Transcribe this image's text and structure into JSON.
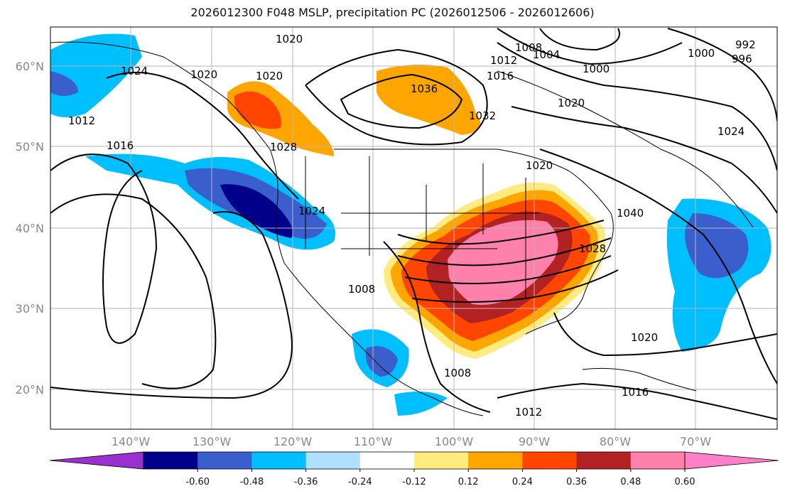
{
  "title": "2026012300 F048 MSLP, precipitation PC (2026012506 - 2026012606)",
  "lat_labels": [
    "60°N",
    "50°N",
    "40°N",
    "30°N",
    "20°N"
  ],
  "lon_labels": [
    "140°W",
    "130°W",
    "120°W",
    "110°W",
    "100°W",
    "90°W",
    "80°W",
    "70°W"
  ],
  "colorbar": {
    "colors": [
      "#9b30d0",
      "#00008b",
      "#3a5fcd",
      "#00bfff",
      "#b0e0ff",
      "#ffffff",
      "#ffeb80",
      "#ffa500",
      "#ff4500",
      "#b22222",
      "#ff80ab",
      "#ff80c8"
    ],
    "labels": [
      "-0.60",
      "-0.48",
      "-0.36",
      "-0.24",
      "-0.12",
      "0.12",
      "0.24",
      "0.36",
      "0.48",
      "0.60"
    ]
  },
  "isobar_labels": [
    "1020",
    "1024",
    "1020",
    "1020",
    "1036",
    "1032",
    "1008",
    "1012",
    "1016",
    "1004",
    "1000",
    "1000",
    "1020",
    "996",
    "992",
    "1024",
    "1012",
    "1016",
    "1028",
    "1020",
    "1024",
    "1040",
    "1028",
    "1008",
    "1008",
    "1020",
    "1016",
    "1012"
  ]
}
